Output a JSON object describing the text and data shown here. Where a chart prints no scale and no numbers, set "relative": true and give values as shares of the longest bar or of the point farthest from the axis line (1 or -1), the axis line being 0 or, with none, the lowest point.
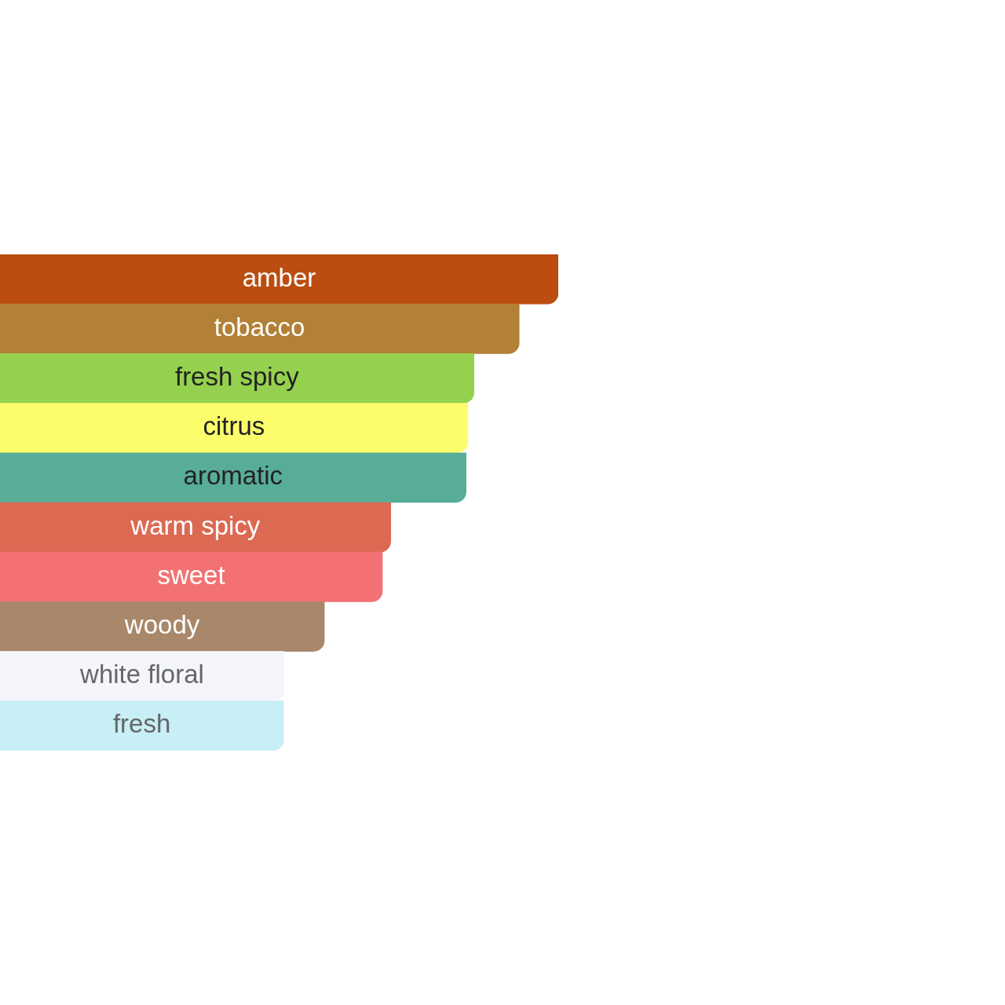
{
  "chart_data": {
    "type": "bar",
    "orientation": "horizontal",
    "relative": true,
    "categories": [
      "amber",
      "tobacco",
      "fresh spicy",
      "citrus",
      "aromatic",
      "warm spicy",
      "sweet",
      "woody",
      "white floral",
      "fresh"
    ],
    "values": [
      1,
      0.93,
      0.849,
      0.838,
      0.835,
      0.7,
      0.685,
      0.581,
      0.509,
      0.508
    ],
    "colors": [
      "#bb4d10",
      "#b28036",
      "#95d14e",
      "#fbfd6b",
      "#58ad99",
      "#dc6952",
      "#f37173",
      "#a9876a",
      "#f4f6fc",
      "#c7eff5"
    ]
  }
}
